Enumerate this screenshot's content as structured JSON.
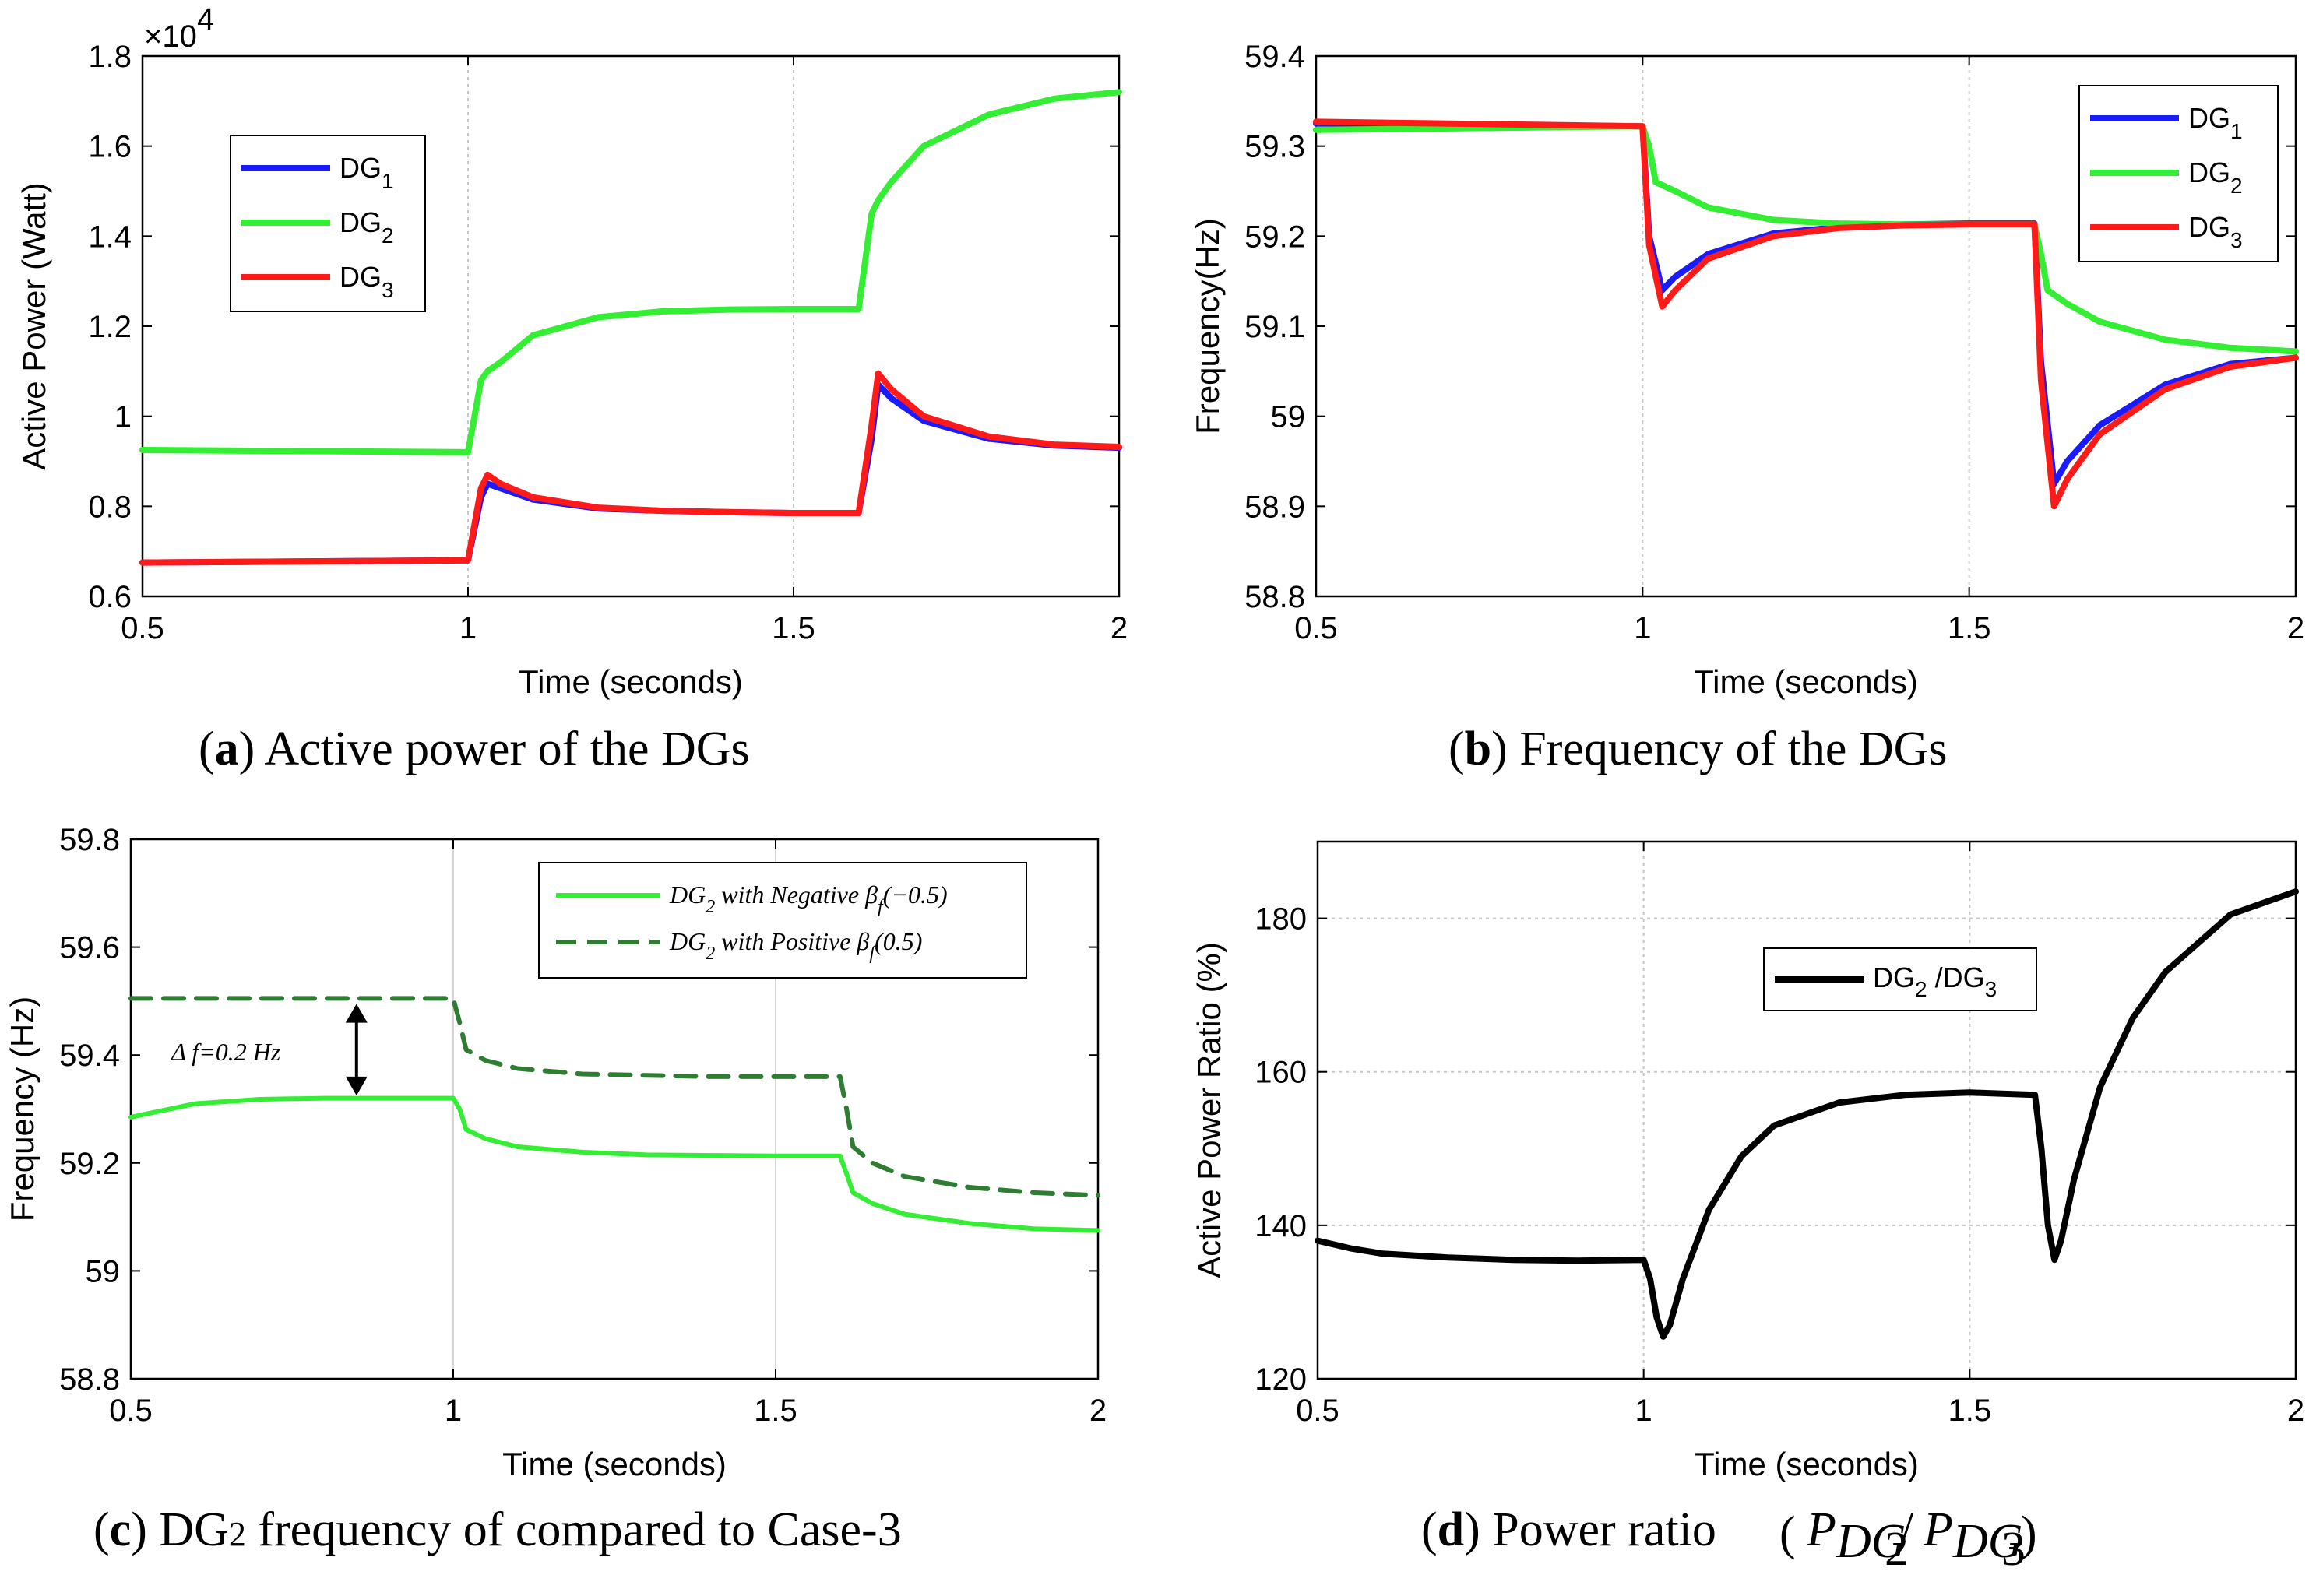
{
  "chart_data": [
    {
      "type": "line",
      "panel": "a",
      "caption_letter": "a",
      "caption_text": "Active power of the DGs",
      "xlabel": "Time (seconds)",
      "ylabel": "Active Power (Watt)",
      "exponent_label": "×10",
      "exponent_power": "4",
      "xlim": [
        0.5,
        2
      ],
      "ylim": [
        0.6,
        1.8
      ],
      "xticks": [
        0.5,
        1,
        1.5,
        2
      ],
      "xtick_labels": [
        "0.5",
        "1",
        "1.5",
        "2"
      ],
      "yticks": [
        0.6,
        0.8,
        1,
        1.2,
        1.4,
        1.6,
        1.8
      ],
      "ytick_labels": [
        "0.6",
        "0.8",
        "1",
        "1.2",
        "1.4",
        "1.6",
        "1.8"
      ],
      "grid": "vertical-dotted",
      "legend_position": "upper-left",
      "series": [
        {
          "name": "DG",
          "sub": "1",
          "color": "#1a1aff",
          "x": [
            0.5,
            1.0,
            1.02,
            1.03,
            1.05,
            1.1,
            1.2,
            1.3,
            1.4,
            1.5,
            1.6,
            1.62,
            1.63,
            1.65,
            1.7,
            1.8,
            1.9,
            2.0
          ],
          "y": [
            0.675,
            0.68,
            0.82,
            0.85,
            0.84,
            0.815,
            0.795,
            0.79,
            0.787,
            0.785,
            0.785,
            0.95,
            1.07,
            1.04,
            0.99,
            0.95,
            0.935,
            0.93
          ]
        },
        {
          "name": "DG",
          "sub": "2",
          "color": "#33ee33",
          "x": [
            0.5,
            1.0,
            1.02,
            1.03,
            1.05,
            1.1,
            1.2,
            1.3,
            1.4,
            1.5,
            1.6,
            1.62,
            1.63,
            1.65,
            1.7,
            1.8,
            1.9,
            2.0
          ],
          "y": [
            0.925,
            0.92,
            1.08,
            1.1,
            1.12,
            1.18,
            1.22,
            1.233,
            1.237,
            1.238,
            1.238,
            1.45,
            1.48,
            1.52,
            1.6,
            1.67,
            1.705,
            1.72
          ]
        },
        {
          "name": "DG",
          "sub": "3",
          "color": "#ff1a1a",
          "x": [
            0.5,
            1.0,
            1.02,
            1.03,
            1.05,
            1.1,
            1.2,
            1.3,
            1.4,
            1.5,
            1.6,
            1.62,
            1.63,
            1.65,
            1.7,
            1.8,
            1.9,
            2.0
          ],
          "y": [
            0.675,
            0.68,
            0.84,
            0.87,
            0.85,
            0.82,
            0.797,
            0.79,
            0.787,
            0.785,
            0.785,
            0.98,
            1.095,
            1.06,
            1.0,
            0.955,
            0.937,
            0.932
          ]
        }
      ]
    },
    {
      "type": "line",
      "panel": "b",
      "caption_letter": "b",
      "caption_text": "Frequency of the DGs",
      "xlabel": "Time (seconds)",
      "ylabel": "Frequency(Hz)",
      "xlim": [
        0.5,
        2
      ],
      "ylim": [
        58.8,
        59.4
      ],
      "xticks": [
        0.5,
        1,
        1.5,
        2
      ],
      "xtick_labels": [
        "0.5",
        "1",
        "1.5",
        "2"
      ],
      "yticks": [
        58.8,
        58.9,
        59,
        59.1,
        59.2,
        59.3,
        59.4
      ],
      "ytick_labels": [
        "58.8",
        "58.9",
        "59",
        "59.1",
        "59.2",
        "59.3",
        "59.4"
      ],
      "grid": "vertical-dotted",
      "legend_position": "upper-right",
      "series": [
        {
          "name": "DG",
          "sub": "1",
          "color": "#1a1aff",
          "x": [
            0.5,
            1.0,
            1.01,
            1.03,
            1.05,
            1.1,
            1.2,
            1.3,
            1.4,
            1.5,
            1.6,
            1.61,
            1.63,
            1.65,
            1.7,
            1.8,
            1.9,
            2.0
          ],
          "y": [
            59.325,
            59.322,
            59.2,
            59.14,
            59.155,
            59.18,
            59.203,
            59.21,
            59.213,
            59.214,
            59.214,
            59.06,
            58.925,
            58.95,
            58.99,
            59.035,
            59.058,
            59.065
          ]
        },
        {
          "name": "DG",
          "sub": "2",
          "color": "#33ee33",
          "x": [
            0.5,
            1.0,
            1.01,
            1.02,
            1.05,
            1.1,
            1.2,
            1.3,
            1.4,
            1.5,
            1.6,
            1.61,
            1.62,
            1.65,
            1.7,
            1.8,
            1.9,
            2.0
          ],
          "y": [
            59.318,
            59.322,
            59.3,
            59.26,
            59.25,
            59.232,
            59.218,
            59.214,
            59.213,
            59.213,
            59.213,
            59.18,
            59.14,
            59.125,
            59.105,
            59.085,
            59.076,
            59.072
          ]
        },
        {
          "name": "DG",
          "sub": "3",
          "color": "#ff1a1a",
          "x": [
            0.5,
            1.0,
            1.01,
            1.03,
            1.05,
            1.1,
            1.2,
            1.3,
            1.4,
            1.5,
            1.6,
            1.61,
            1.63,
            1.65,
            1.7,
            1.8,
            1.9,
            2.0
          ],
          "y": [
            59.327,
            59.322,
            59.19,
            59.122,
            59.14,
            59.175,
            59.2,
            59.209,
            59.212,
            59.213,
            59.213,
            59.04,
            58.9,
            58.93,
            58.98,
            59.03,
            59.055,
            59.065
          ]
        }
      ]
    },
    {
      "type": "line",
      "panel": "c",
      "caption_letter": "c",
      "caption_text": "DG2 frequency of compared to Case-3",
      "xlabel": "Time (seconds)",
      "ylabel": "Frequency (Hz)",
      "xlim": [
        0.5,
        2
      ],
      "ylim": [
        58.8,
        59.8
      ],
      "xticks": [
        0.5,
        1,
        1.5,
        2
      ],
      "xtick_labels": [
        "0.5",
        "1",
        "1.5",
        "2"
      ],
      "yticks": [
        58.8,
        59,
        59.2,
        59.4,
        59.6,
        59.8
      ],
      "ytick_labels": [
        "58.8",
        "59",
        "59.2",
        "59.4",
        "59.6",
        "59.8"
      ],
      "grid": "vertical-solid",
      "legend_position": "upper-right",
      "annotation": "Δ f=0.2 Hz",
      "series": [
        {
          "name": "DG2 with Negative βf (−0.5)",
          "legend_parts": [
            "DG",
            "2",
            " with Negative β",
            "f",
            "(−0.5)"
          ],
          "color": "#33ee33",
          "style": "solid",
          "x": [
            0.5,
            0.6,
            0.7,
            0.8,
            1.0,
            1.01,
            1.02,
            1.05,
            1.1,
            1.2,
            1.3,
            1.5,
            1.6,
            1.61,
            1.62,
            1.65,
            1.7,
            1.8,
            1.9,
            2.0
          ],
          "y": [
            59.285,
            59.31,
            59.318,
            59.32,
            59.32,
            59.3,
            59.262,
            59.245,
            59.23,
            59.22,
            59.215,
            59.213,
            59.213,
            59.18,
            59.145,
            59.125,
            59.105,
            59.088,
            59.078,
            59.075
          ]
        },
        {
          "name": "DG2 with Positive βf (0.5)",
          "legend_parts": [
            "DG",
            "2",
            " with Positive β",
            "f",
            "(0.5)"
          ],
          "color": "#2e7d32",
          "style": "dashed",
          "x": [
            0.5,
            1.0,
            1.01,
            1.02,
            1.05,
            1.1,
            1.2,
            1.4,
            1.6,
            1.61,
            1.62,
            1.65,
            1.7,
            1.8,
            1.9,
            2.0
          ],
          "y": [
            59.505,
            59.505,
            59.46,
            59.41,
            59.39,
            59.375,
            59.365,
            59.36,
            59.36,
            59.3,
            59.23,
            59.2,
            59.175,
            59.155,
            59.145,
            59.14
          ]
        }
      ]
    },
    {
      "type": "line",
      "panel": "d",
      "caption_letter": "d",
      "caption_text": "Power ratio",
      "caption_math": "P",
      "caption_sub": "DG",
      "caption_sub2_a": "2",
      "caption_sub2_b": "3",
      "xlabel": "Time (seconds)",
      "ylabel": "Active Power Ratio (%)",
      "xlim": [
        0.5,
        2
      ],
      "ylim": [
        120,
        190
      ],
      "xticks": [
        0.5,
        1,
        1.5,
        2
      ],
      "xtick_labels": [
        "0.5",
        "1",
        "1.5",
        "2"
      ],
      "yticks": [
        120,
        140,
        160,
        180
      ],
      "ytick_labels": [
        "120",
        "140",
        "160",
        "180"
      ],
      "grid": "both-dotted",
      "legend_position": "center",
      "series": [
        {
          "name": "DG2 /DG3",
          "legend_parts": [
            "DG",
            "2",
            " /DG",
            "3"
          ],
          "color": "#000000",
          "x": [
            0.5,
            0.55,
            0.6,
            0.7,
            0.8,
            0.9,
            1.0,
            1.01,
            1.02,
            1.03,
            1.04,
            1.06,
            1.1,
            1.15,
            1.2,
            1.3,
            1.4,
            1.5,
            1.6,
            1.61,
            1.62,
            1.63,
            1.64,
            1.66,
            1.7,
            1.75,
            1.8,
            1.9,
            2.0
          ],
          "y": [
            138,
            137,
            136.3,
            135.8,
            135.5,
            135.4,
            135.5,
            133,
            128,
            125.5,
            127,
            133,
            142,
            149,
            153,
            156,
            157,
            157.3,
            157,
            150,
            140,
            135.5,
            138,
            146,
            158,
            167,
            173,
            180.5,
            183.5
          ]
        }
      ]
    }
  ],
  "captions": {
    "a_paren_open": "(",
    "a_letter": "a",
    "a_text": ") Active power of the DGs",
    "b_paren_open": "(",
    "b_letter": "b",
    "b_text": ") Frequency of the DGs",
    "c_paren_open": "(",
    "c_letter": "c",
    "c_text_pre": ") DG",
    "c_text_sub": "2",
    "c_text_post": " frequency of compared to Case-3",
    "d_paren_open": "(",
    "d_letter": "d",
    "d_text": ") Power ratio"
  }
}
